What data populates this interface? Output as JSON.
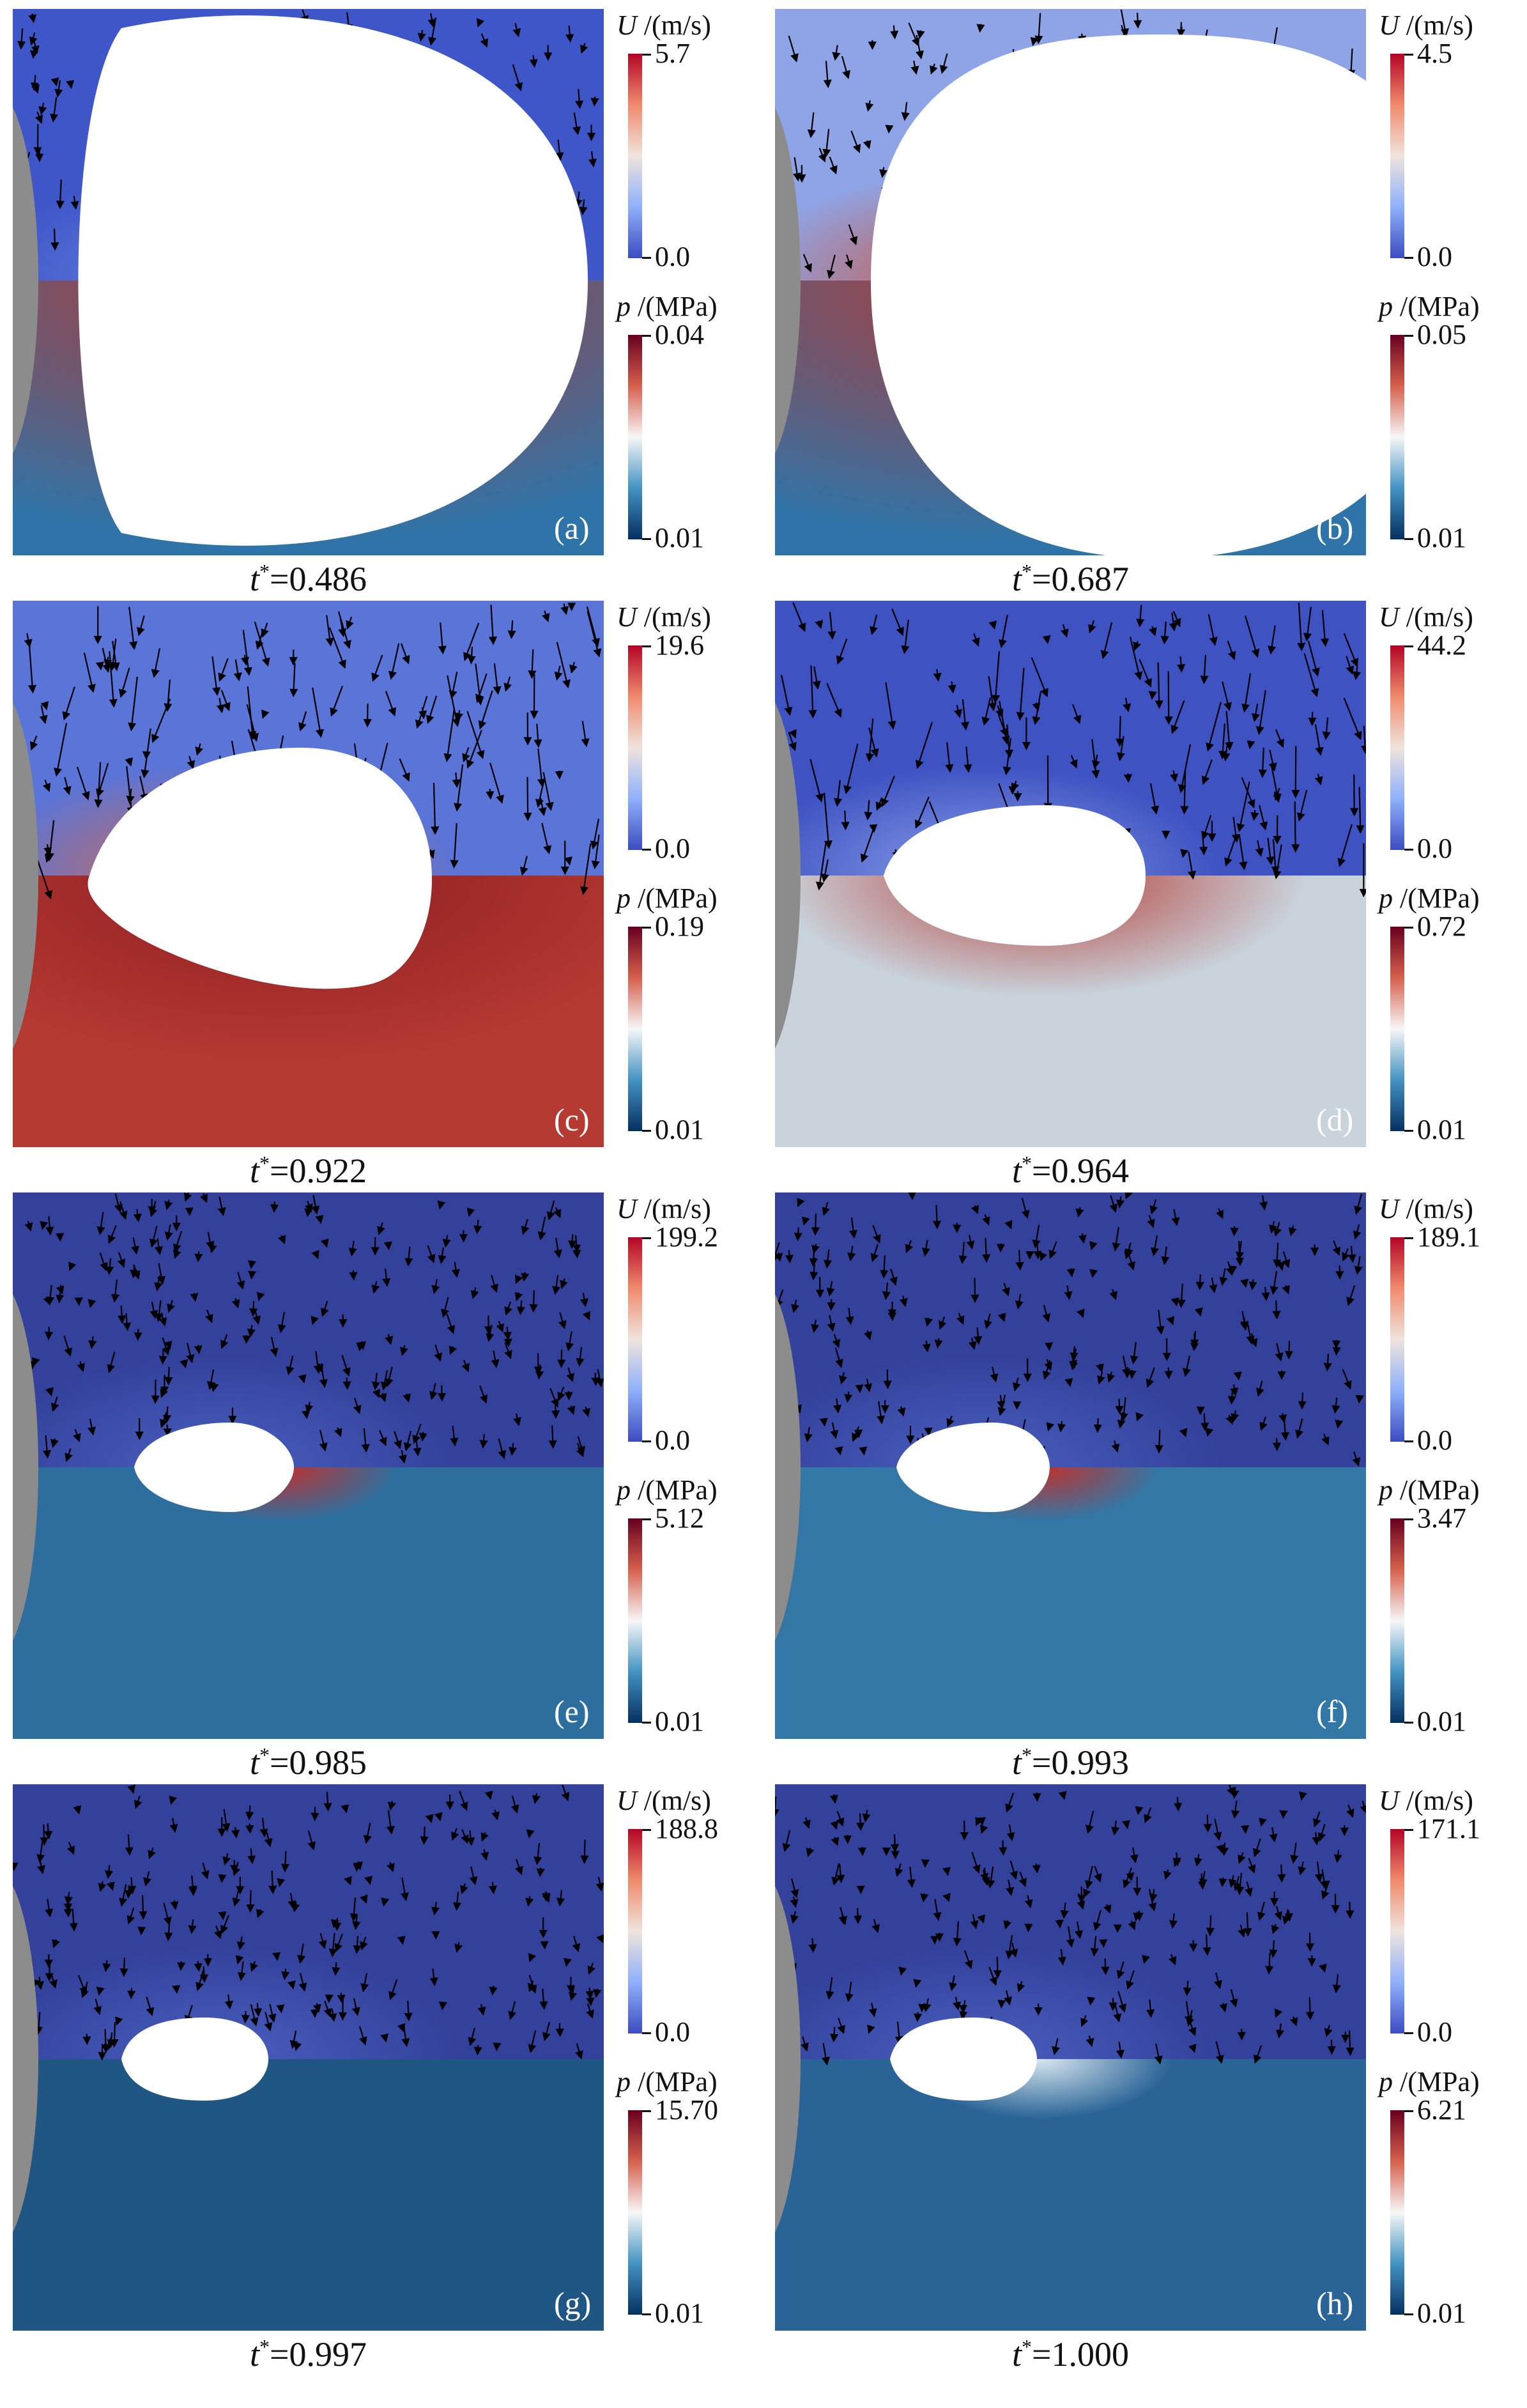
{
  "panels": [
    {
      "label": "(a)",
      "time_label": "=0.486",
      "u_title_sym": "U",
      "u_title_unit": "/(m/s)",
      "u_max": "5.7",
      "u_min": "0.0",
      "p_title_sym": "p",
      "p_title_unit": "/(MPa)",
      "p_max": "0.04",
      "p_min": "0.01"
    },
    {
      "label": "(b)",
      "time_label": "=0.687",
      "u_title_sym": "U",
      "u_title_unit": "/(m/s)",
      "u_max": "4.5",
      "u_min": "0.0",
      "p_title_sym": "p",
      "p_title_unit": "/(MPa)",
      "p_max": "0.05",
      "p_min": "0.01"
    },
    {
      "label": "(c)",
      "time_label": "=0.922",
      "u_title_sym": "U",
      "u_title_unit": "/(m/s)",
      "u_max": "19.6",
      "u_min": "0.0",
      "p_title_sym": "p",
      "p_title_unit": "/(MPa)",
      "p_max": "0.19",
      "p_min": "0.01"
    },
    {
      "label": "(d)",
      "time_label": "=0.964",
      "u_title_sym": "U",
      "u_title_unit": "/(m/s)",
      "u_max": "44.2",
      "u_min": "0.0",
      "p_title_sym": "p",
      "p_title_unit": "/(MPa)",
      "p_max": "0.72",
      "p_min": "0.01"
    },
    {
      "label": "(e)",
      "time_label": "=0.985",
      "u_title_sym": "U",
      "u_title_unit": "/(m/s)",
      "u_max": "199.2",
      "u_min": "0.0",
      "p_title_sym": "p",
      "p_title_unit": "/(MPa)",
      "p_max": "5.12",
      "p_min": "0.01"
    },
    {
      "label": "(f)",
      "time_label": "=0.993",
      "u_title_sym": "U",
      "u_title_unit": "/(m/s)",
      "u_max": "189.1",
      "u_min": "0.0",
      "p_title_sym": "p",
      "p_title_unit": "/(MPa)",
      "p_max": "3.47",
      "p_min": "0.01"
    },
    {
      "label": "(g)",
      "time_label": "=0.997",
      "u_title_sym": "U",
      "u_title_unit": "/(m/s)",
      "u_max": "188.8",
      "u_min": "0.0",
      "p_title_sym": "p",
      "p_title_unit": "/(MPa)",
      "p_max": "15.70",
      "p_min": "0.01"
    },
    {
      "label": "(h)",
      "time_label": "=1.000",
      "u_title_sym": "U",
      "u_title_unit": "/(m/s)",
      "u_max": "171.1",
      "u_min": "0.0",
      "p_title_sym": "p",
      "p_title_unit": "/(MPa)",
      "p_max": "6.21",
      "p_min": "0.01"
    }
  ],
  "time_symbol": "t",
  "time_superscript": "*",
  "colors": {
    "velocity_low": "#3b4cc0",
    "velocity_high": "#b40426",
    "pressure_low": "#053061",
    "pressure_high": "#67001f",
    "wall": "#8c8c8c",
    "bubble": "#ffffff"
  }
}
